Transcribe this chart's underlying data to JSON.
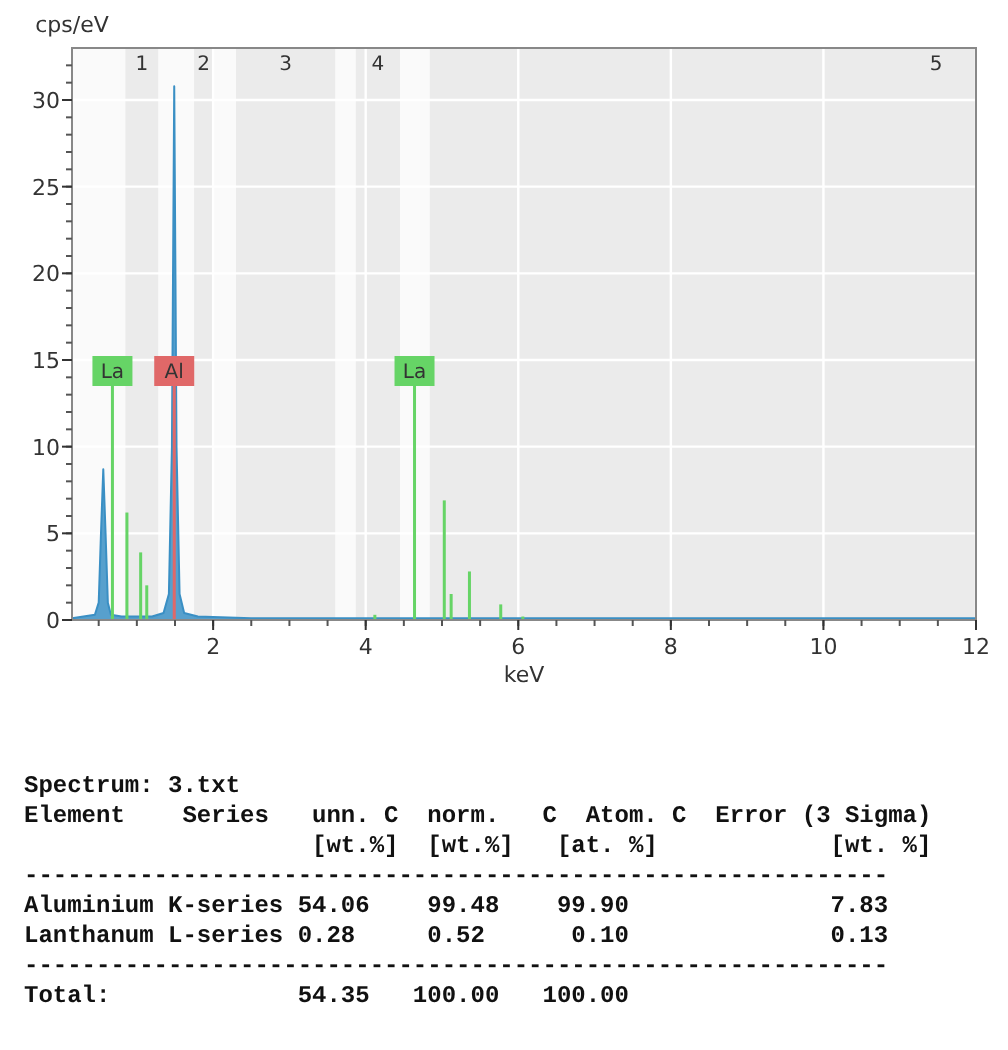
{
  "chart_data": {
    "type": "area",
    "xlabel": "keV",
    "ylabel": "cps/eV",
    "xlim": [
      0.15,
      12
    ],
    "ylim": [
      0,
      33
    ],
    "xticks": [
      2,
      4,
      6,
      8,
      10,
      12
    ],
    "yticks": [
      0,
      5,
      10,
      15,
      20,
      25,
      30
    ],
    "grid": true,
    "marker": "none",
    "series": [
      {
        "color": "#3a8fc4",
        "x": [
          0.15,
          0.3,
          0.45,
          0.5,
          0.53,
          0.56,
          0.59,
          0.62,
          0.66,
          0.8,
          1.0,
          1.2,
          1.35,
          1.42,
          1.46,
          1.49,
          1.52,
          1.56,
          1.62,
          1.8,
          2.5,
          4,
          6,
          12
        ],
        "values": [
          0.1,
          0.2,
          0.3,
          1,
          5,
          8.7,
          5,
          1,
          0.3,
          0.2,
          0.2,
          0.2,
          0.4,
          1.5,
          10,
          30.8,
          10,
          1.5,
          0.4,
          0.2,
          0.1,
          0.1,
          0.1,
          0.1
        ]
      },
      {
        "type": "bar",
        "color": "#66d466",
        "x": [
          0.68,
          0.87,
          1.05,
          1.13,
          4.12,
          4.64,
          5.03,
          5.12,
          5.36,
          5.77,
          6.06
        ],
        "values": [
          13.5,
          6.2,
          3.9,
          2,
          0.3,
          13.5,
          6.9,
          1.5,
          2.8,
          0.9,
          0.2
        ]
      },
      {
        "type": "bar",
        "color": "#e06868",
        "x": [
          1.49
        ],
        "values": [
          13.5
        ]
      }
    ],
    "bands": [
      {
        "axis": "x",
        "from": 0.85,
        "to": 1.28,
        "label": "1"
      },
      {
        "axis": "x",
        "from": 1.75,
        "to": 2.0,
        "label": "2"
      },
      {
        "axis": "x",
        "from": 2.3,
        "to": 3.6,
        "label": "3"
      },
      {
        "axis": "x",
        "from": 3.87,
        "to": 4.45,
        "label": "4"
      },
      {
        "axis": "x",
        "from": 4.84,
        "to": 12,
        "label": "5"
      }
    ],
    "annotations": [
      {
        "text": "La",
        "x": 0.68,
        "y": 13.5
      },
      {
        "text": "Al",
        "x": 1.49,
        "y": 13.5
      },
      {
        "text": "La",
        "x": 4.64,
        "y": 13.5
      },
      "Spectrum: 3.txt",
      "Element    Series   unn. C  norm.   C  Atom. C  Error (3 Sigma)",
      "                    [wt.%]  [wt.%]   [at. %]            [wt. %]",
      "------------------------------------------------------------",
      "Aluminium K-series 54.06    99.48    99.90              7.83",
      "Lanthanum L-series 0.28     0.52      0.10              0.13",
      "------------------------------------------------------------",
      "Total:             54.35   100.00   100.00"
    ]
  }
}
